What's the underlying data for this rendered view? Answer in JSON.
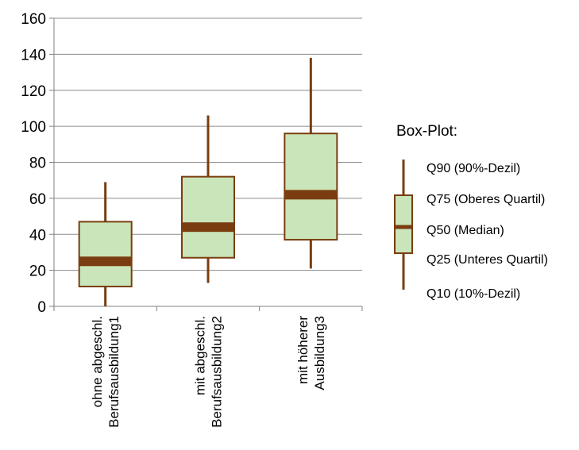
{
  "chart_data": {
    "type": "boxplot",
    "title": "",
    "xlabel": "",
    "ylabel": "",
    "ylim": [
      0,
      160
    ],
    "yticks": [
      0,
      20,
      40,
      60,
      80,
      100,
      120,
      140,
      160
    ],
    "grid": true,
    "categories": [
      [
        "ohne abgeschl.",
        "Berufsausbildung1"
      ],
      [
        "mit abgeschl.",
        "Berufsausbildung2"
      ],
      [
        "mit höherer",
        "Ausbildung3"
      ]
    ],
    "boxes": [
      {
        "q10": 0,
        "q25": 11,
        "median": 25,
        "q75": 47,
        "q90": 69
      },
      {
        "q10": 13,
        "q25": 27,
        "median": 44,
        "q75": 72,
        "q90": 106
      },
      {
        "q10": 21,
        "q25": 37,
        "median": 62,
        "q75": 96,
        "q90": 138
      }
    ],
    "colors": {
      "box_fill": "#c9e5b9",
      "stroke": "#7a3d10",
      "median": "#7a3d10",
      "grid": "#8c8c8c",
      "axis": "#808080"
    },
    "legend": {
      "position": "right",
      "title": "Box-Plot:",
      "items": {
        "q90": "Q90 (90%-Dezil)",
        "q75": "Q75 (Oberes Quartil)",
        "q50": "Q50 (Median)",
        "q25": "Q25 (Unteres Quartil)",
        "q10": "Q10 (10%-Dezil)"
      }
    }
  }
}
